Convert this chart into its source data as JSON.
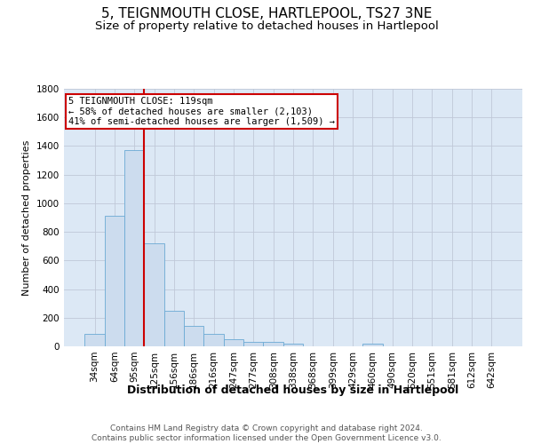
{
  "title": "5, TEIGNMOUTH CLOSE, HARTLEPOOL, TS27 3NE",
  "subtitle": "Size of property relative to detached houses in Hartlepool",
  "xlabel": "Distribution of detached houses by size in Hartlepool",
  "ylabel": "Number of detached properties",
  "categories": [
    "34sqm",
    "64sqm",
    "95sqm",
    "125sqm",
    "156sqm",
    "186sqm",
    "216sqm",
    "247sqm",
    "277sqm",
    "308sqm",
    "338sqm",
    "368sqm",
    "399sqm",
    "429sqm",
    "460sqm",
    "490sqm",
    "520sqm",
    "551sqm",
    "581sqm",
    "612sqm",
    "642sqm"
  ],
  "values": [
    85,
    910,
    1370,
    720,
    250,
    140,
    85,
    50,
    30,
    30,
    20,
    0,
    0,
    0,
    20,
    0,
    0,
    0,
    0,
    0,
    0
  ],
  "bar_color": "#ccdcee",
  "bar_edgecolor": "#6aaad4",
  "grid_color": "#c0c8d8",
  "background_color": "#dce8f5",
  "vline_color": "#cc0000",
  "vline_xindex": 2.5,
  "annotation_text": "5 TEIGNMOUTH CLOSE: 119sqm\n← 58% of detached houses are smaller (2,103)\n41% of semi-detached houses are larger (1,509) →",
  "annotation_box_edgecolor": "#cc0000",
  "ylim": [
    0,
    1800
  ],
  "yticks": [
    0,
    200,
    400,
    600,
    800,
    1000,
    1200,
    1400,
    1600,
    1800
  ],
  "footer": "Contains HM Land Registry data © Crown copyright and database right 2024.\nContains public sector information licensed under the Open Government Licence v3.0.",
  "title_fontsize": 11,
  "subtitle_fontsize": 9.5,
  "xlabel_fontsize": 9,
  "ylabel_fontsize": 8,
  "tick_fontsize": 7.5,
  "annotation_fontsize": 7.5,
  "footer_fontsize": 6.5
}
